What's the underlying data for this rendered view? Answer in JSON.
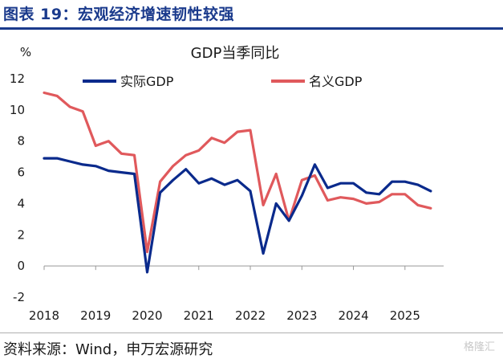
{
  "header": {
    "title": "图表 19：宏观经济增速韧性较强"
  },
  "footer": {
    "source": "资料来源：Wind，申万宏源研究",
    "watermark": "格隆汇"
  },
  "chart_data": {
    "type": "line",
    "title": "GDP当季同比",
    "ylabel": "%",
    "ylim": [
      -2,
      12
    ],
    "yticks": [
      -2,
      0,
      2,
      4,
      6,
      8,
      10,
      12
    ],
    "xlim": [
      2018,
      2025.75
    ],
    "xticks": [
      "2018",
      "2019",
      "2020",
      "2021",
      "2022",
      "2023",
      "2024",
      "2025"
    ],
    "legend_position": "top",
    "grid": false,
    "series": [
      {
        "name": "实际GDP",
        "color": "#0a2a8c",
        "x": [
          2018.0,
          2018.25,
          2018.5,
          2018.75,
          2019.0,
          2019.25,
          2019.5,
          2019.75,
          2020.0,
          2020.25,
          2020.5,
          2020.75,
          2021.0,
          2021.25,
          2021.5,
          2021.75,
          2022.0,
          2022.25,
          2022.5,
          2022.75,
          2023.0,
          2023.25,
          2023.5,
          2023.75,
          2024.0,
          2024.25,
          2024.5,
          2024.75,
          2025.0,
          2025.25,
          2025.5
        ],
        "values": [
          6.9,
          6.9,
          6.7,
          6.5,
          6.4,
          6.1,
          6.0,
          5.9,
          -0.4,
          4.7,
          5.5,
          6.2,
          5.3,
          5.6,
          5.2,
          5.5,
          4.8,
          0.8,
          4.0,
          2.9,
          4.5,
          6.5,
          5.0,
          5.3,
          5.3,
          4.7,
          4.6,
          5.4,
          5.4,
          5.2,
          4.8
        ]
      },
      {
        "name": "名义GDP",
        "color": "#e0595c",
        "x": [
          2018.0,
          2018.25,
          2018.5,
          2018.75,
          2019.0,
          2019.25,
          2019.5,
          2019.75,
          2020.0,
          2020.25,
          2020.5,
          2020.75,
          2021.0,
          2021.25,
          2021.5,
          2021.75,
          2022.0,
          2022.25,
          2022.5,
          2022.75,
          2023.0,
          2023.25,
          2023.5,
          2023.75,
          2024.0,
          2024.25,
          2024.5,
          2024.75,
          2025.0,
          2025.25,
          2025.5
        ],
        "values": [
          11.1,
          10.9,
          10.2,
          9.9,
          7.7,
          8.0,
          7.2,
          7.1,
          0.9,
          5.4,
          6.4,
          7.1,
          7.4,
          8.2,
          7.9,
          8.6,
          8.7,
          3.9,
          5.9,
          2.9,
          5.5,
          5.8,
          4.2,
          4.4,
          4.3,
          4.0,
          4.1,
          4.6,
          4.6,
          3.9,
          3.7
        ]
      }
    ]
  }
}
